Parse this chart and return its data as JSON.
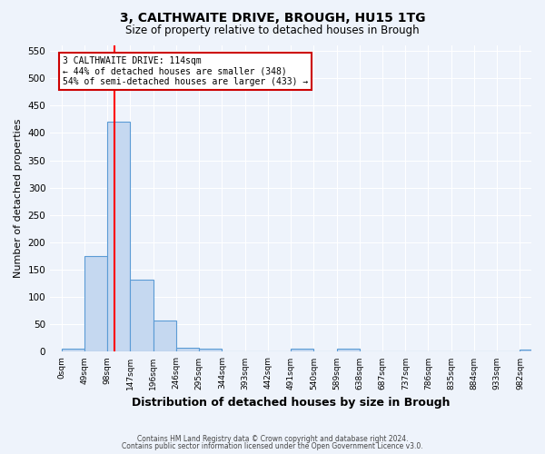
{
  "title1": "3, CALTHWAITE DRIVE, BROUGH, HU15 1TG",
  "title2": "Size of property relative to detached houses in Brough",
  "xlabel": "Distribution of detached houses by size in Brough",
  "ylabel": "Number of detached properties",
  "bin_labels": [
    "0sqm",
    "49sqm",
    "98sqm",
    "147sqm",
    "196sqm",
    "246sqm",
    "295sqm",
    "344sqm",
    "393sqm",
    "442sqm",
    "491sqm",
    "540sqm",
    "589sqm",
    "638sqm",
    "687sqm",
    "737sqm",
    "786sqm",
    "835sqm",
    "884sqm",
    "933sqm",
    "982sqm"
  ],
  "bar_values": [
    5,
    175,
    421,
    132,
    57,
    8,
    5,
    0,
    0,
    0,
    5,
    0,
    5,
    0,
    0,
    0,
    0,
    0,
    0,
    0,
    4
  ],
  "bar_color": "#c5d8f0",
  "bar_edge_color": "#5b9bd5",
  "red_line_x": 114,
  "bin_width": 49,
  "ylim": [
    0,
    560
  ],
  "yticks": [
    0,
    50,
    100,
    150,
    200,
    250,
    300,
    350,
    400,
    450,
    500,
    550
  ],
  "annotation_title": "3 CALTHWAITE DRIVE: 114sqm",
  "annotation_line1": "← 44% of detached houses are smaller (348)",
  "annotation_line2": "54% of semi-detached houses are larger (433) →",
  "annotation_box_color": "#ffffff",
  "annotation_box_edge": "#cc0000",
  "footnote1": "Contains HM Land Registry data © Crown copyright and database right 2024.",
  "footnote2": "Contains public sector information licensed under the Open Government Licence v3.0.",
  "background_color": "#eef3fb",
  "grid_color": "#ffffff",
  "title1_fontsize": 10,
  "title2_fontsize": 8.5,
  "xlabel_fontsize": 9,
  "ylabel_fontsize": 8,
  "footnote_fontsize": 5.5
}
